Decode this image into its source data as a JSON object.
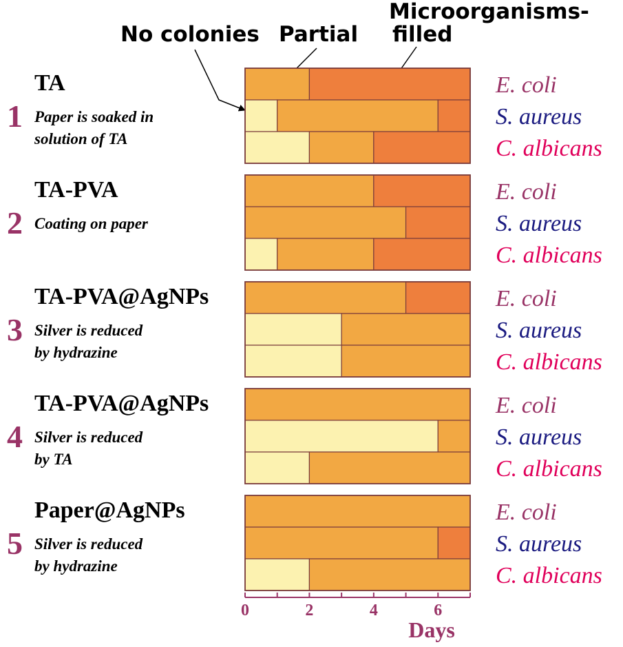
{
  "colors": {
    "none": "#fcf2b0",
    "partial": "#f2a843",
    "filled": "#ee7f3d",
    "stroke": "#7a3b3b",
    "accent": "#993366",
    "e_coli": "#993366",
    "s_aureus": "#1a1a80",
    "c_albicans": "#e0005a"
  },
  "legend": {
    "no_colonies": "No colonies",
    "partial": "Partial",
    "filled_line1": "Microorganisms-",
    "filled_line2": "filled"
  },
  "chart_data": {
    "type": "bar",
    "orientation": "horizontal-stacked",
    "xlabel": "Days",
    "xlim": [
      0,
      7
    ],
    "xticks": [
      0,
      2,
      4,
      6
    ],
    "states": [
      "No colonies",
      "Partial",
      "Microorganisms-filled"
    ],
    "groups": [
      {
        "number": "1",
        "name": "TA",
        "desc": [
          "Paper is soaked in",
          "solution of TA"
        ],
        "rows": [
          {
            "organism": "E. coli",
            "no_colonies_until": 0,
            "partial_until": 2
          },
          {
            "organism": "S. aureus",
            "no_colonies_until": 1,
            "partial_until": 6
          },
          {
            "organism": "C. albicans",
            "no_colonies_until": 2,
            "partial_until": 4
          }
        ]
      },
      {
        "number": "2",
        "name": "TA-PVA",
        "desc": [
          "Coating on paper"
        ],
        "rows": [
          {
            "organism": "E. coli",
            "no_colonies_until": 0,
            "partial_until": 4
          },
          {
            "organism": "S. aureus",
            "no_colonies_until": 0,
            "partial_until": 5
          },
          {
            "organism": "C. albicans",
            "no_colonies_until": 1,
            "partial_until": 4
          }
        ]
      },
      {
        "number": "3",
        "name": "TA-PVA@AgNPs",
        "desc": [
          "Silver is reduced",
          "by hydrazine"
        ],
        "rows": [
          {
            "organism": "E. coli",
            "no_colonies_until": 0,
            "partial_until": 5
          },
          {
            "organism": "S. aureus",
            "no_colonies_until": 3,
            "partial_until": 7
          },
          {
            "organism": "C. albicans",
            "no_colonies_until": 3,
            "partial_until": 7
          }
        ]
      },
      {
        "number": "4",
        "name": "TA-PVA@AgNPs",
        "desc": [
          "Silver is reduced",
          "by TA"
        ],
        "rows": [
          {
            "organism": "E. coli",
            "no_colonies_until": 0,
            "partial_until": 7
          },
          {
            "organism": "S. aureus",
            "no_colonies_until": 6,
            "partial_until": 7
          },
          {
            "organism": "C. albicans",
            "no_colonies_until": 2,
            "partial_until": 7
          }
        ]
      },
      {
        "number": "5",
        "name": "Paper@AgNPs",
        "desc": [
          "Silver is reduced",
          "by hydrazine"
        ],
        "rows": [
          {
            "organism": "E. coli",
            "no_colonies_until": 0,
            "partial_until": 7
          },
          {
            "organism": "S. aureus",
            "no_colonies_until": 0,
            "partial_until": 6
          },
          {
            "organism": "C. albicans",
            "no_colonies_until": 2,
            "partial_until": 7
          }
        ]
      }
    ]
  }
}
